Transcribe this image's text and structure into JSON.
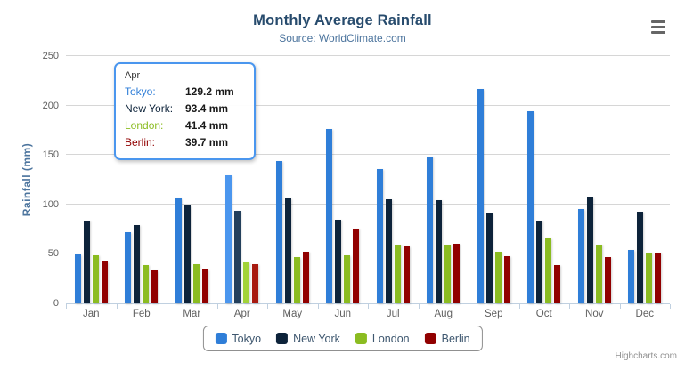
{
  "chart_data": {
    "type": "bar",
    "title": "Monthly Average Rainfall",
    "subtitle": "Source: WorldClimate.com",
    "categories": [
      "Jan",
      "Feb",
      "Mar",
      "Apr",
      "May",
      "Jun",
      "Jul",
      "Aug",
      "Sep",
      "Oct",
      "Nov",
      "Dec"
    ],
    "series": [
      {
        "name": "Tokyo",
        "color": "#2f7ed8",
        "hover_color": "#4b96ee",
        "values": [
          49.9,
          71.5,
          106.4,
          129.2,
          144.0,
          176.0,
          135.6,
          148.5,
          216.4,
          194.1,
          95.6,
          54.4
        ]
      },
      {
        "name": "New York",
        "color": "#0d233a",
        "hover_color": "#24405c",
        "values": [
          83.6,
          78.8,
          98.5,
          93.4,
          106.0,
          84.5,
          105.0,
          104.3,
          91.2,
          83.5,
          106.6,
          92.3
        ]
      },
      {
        "name": "London",
        "color": "#8bbc21",
        "hover_color": "#a2d338",
        "values": [
          48.9,
          38.8,
          39.3,
          41.4,
          47.0,
          48.3,
          59.0,
          59.6,
          52.4,
          65.2,
          59.3,
          51.2
        ]
      },
      {
        "name": "Berlin",
        "color": "#910000",
        "hover_color": "#a81a10",
        "values": [
          42.4,
          33.2,
          34.5,
          39.7,
          52.6,
          75.5,
          57.4,
          60.4,
          47.6,
          39.1,
          46.8,
          51.1
        ]
      }
    ],
    "xlabel": "",
    "ylabel": "Rainfall (mm)",
    "ylim": [
      0,
      250
    ],
    "yticks": [
      0,
      50,
      100,
      150,
      200,
      250
    ],
    "grid": true,
    "legend_position": "bottom",
    "hovered_category_index": 3
  },
  "tooltip": {
    "header": "Apr",
    "border_color": "#4a96ee",
    "rows": [
      {
        "name": "Tokyo",
        "value": "129.2 mm"
      },
      {
        "name": "New York",
        "value": "93.4 mm"
      },
      {
        "name": "London",
        "value": "41.4 mm"
      },
      {
        "name": "Berlin",
        "value": "39.7 mm"
      }
    ]
  },
  "credits": {
    "label": "Highcharts.com"
  },
  "icons": {
    "context_menu": "hamburger-icon"
  }
}
